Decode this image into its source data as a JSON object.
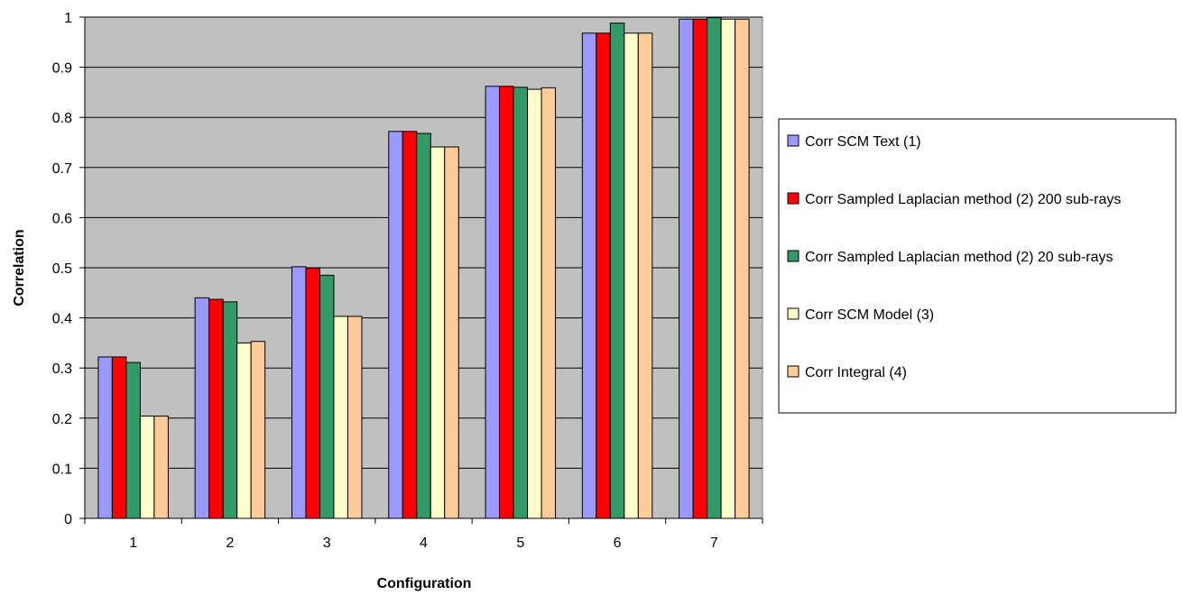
{
  "chart_data": {
    "type": "bar",
    "title": "",
    "xlabel": "Configuration",
    "ylabel": "Correlation",
    "ylim": [
      0,
      1
    ],
    "yticks": [
      "0",
      "0.1",
      "0.2",
      "0.3",
      "0.4",
      "0.5",
      "0.6",
      "0.7",
      "0.8",
      "0.9",
      "1"
    ],
    "categories": [
      "1",
      "2",
      "3",
      "4",
      "5",
      "6",
      "7"
    ],
    "grid": true,
    "plot_background": "#c0c0c0",
    "legend_position": "right",
    "series": [
      {
        "name": "Corr SCM Text (1)",
        "color": "#9999ff",
        "values": [
          0.322,
          0.44,
          0.502,
          0.772,
          0.862,
          0.968,
          0.996
        ]
      },
      {
        "name": "Corr Sampled  Laplacian method (2) 200 sub-rays",
        "color": "#ff0000",
        "values": [
          0.322,
          0.437,
          0.499,
          0.772,
          0.862,
          0.968,
          0.996
        ]
      },
      {
        "name": "Corr Sampled  Laplacian method (2) 20 sub-rays",
        "color": "#339966",
        "values": [
          0.311,
          0.432,
          0.485,
          0.768,
          0.86,
          0.988,
          0.999
        ]
      },
      {
        "name": "Corr SCM Model (3)",
        "color": "#ffffcc",
        "values": [
          0.204,
          0.35,
          0.403,
          0.741,
          0.856,
          0.968,
          0.996
        ]
      },
      {
        "name": "Corr Integral (4)",
        "color": "#ffcc99",
        "values": [
          0.204,
          0.353,
          0.403,
          0.741,
          0.859,
          0.968,
          0.996
        ]
      }
    ]
  }
}
